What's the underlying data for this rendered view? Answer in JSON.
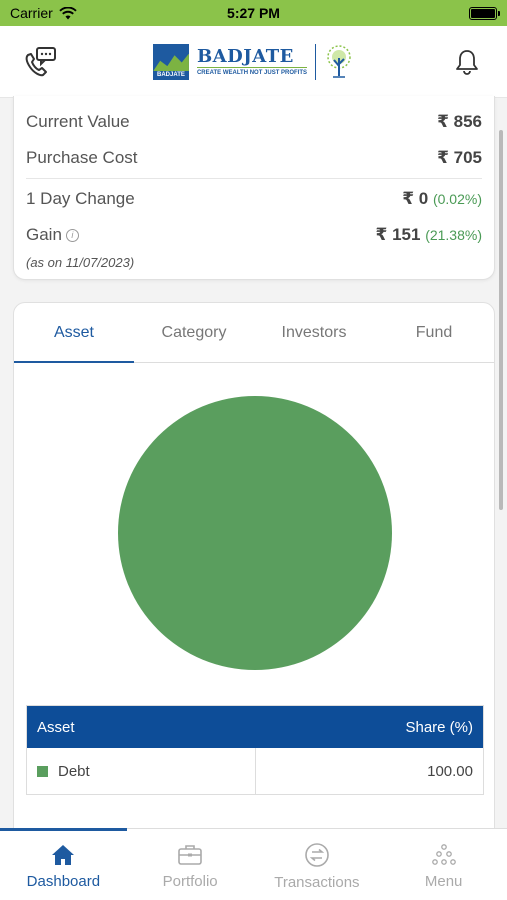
{
  "status_bar": {
    "carrier": "Carrier",
    "time": "5:27 PM"
  },
  "header": {
    "brand_name": "BADJATE",
    "brand_mark_text": "BADJATE",
    "brand_tagline": "CREATE WEALTH NOT JUST PROFITS"
  },
  "summary": {
    "current_value_label": "Current Value",
    "current_value": "₹ 856",
    "purchase_cost_label": "Purchase Cost",
    "purchase_cost": "₹ 705",
    "day_change_label": "1 Day Change",
    "day_change": "₹ 0",
    "day_change_pct": "(0.02%)",
    "gain_label": "Gain",
    "gain": "₹ 151",
    "gain_pct": "(21.38%)",
    "as_on": "(as on 11/07/2023)"
  },
  "tabs": [
    {
      "label": "Asset",
      "active": true
    },
    {
      "label": "Category",
      "active": false
    },
    {
      "label": "Investors",
      "active": false
    },
    {
      "label": "Fund",
      "active": false
    }
  ],
  "chart_data": {
    "type": "pie",
    "categories": [
      "Debt"
    ],
    "values": [
      100.0
    ],
    "colors": [
      "#5a9e5e"
    ]
  },
  "table": {
    "header_asset": "Asset",
    "header_share": "Share (%)",
    "rows": [
      {
        "name": "Debt",
        "share": "100.00",
        "color": "#5a9e5e"
      }
    ]
  },
  "bottom_nav": [
    {
      "label": "Dashboard",
      "icon": "home-icon",
      "active": true
    },
    {
      "label": "Portfolio",
      "icon": "briefcase-icon",
      "active": false
    },
    {
      "label": "Transactions",
      "icon": "transfer-icon",
      "active": false
    },
    {
      "label": "Menu",
      "icon": "dots-grid-icon",
      "active": false
    }
  ]
}
